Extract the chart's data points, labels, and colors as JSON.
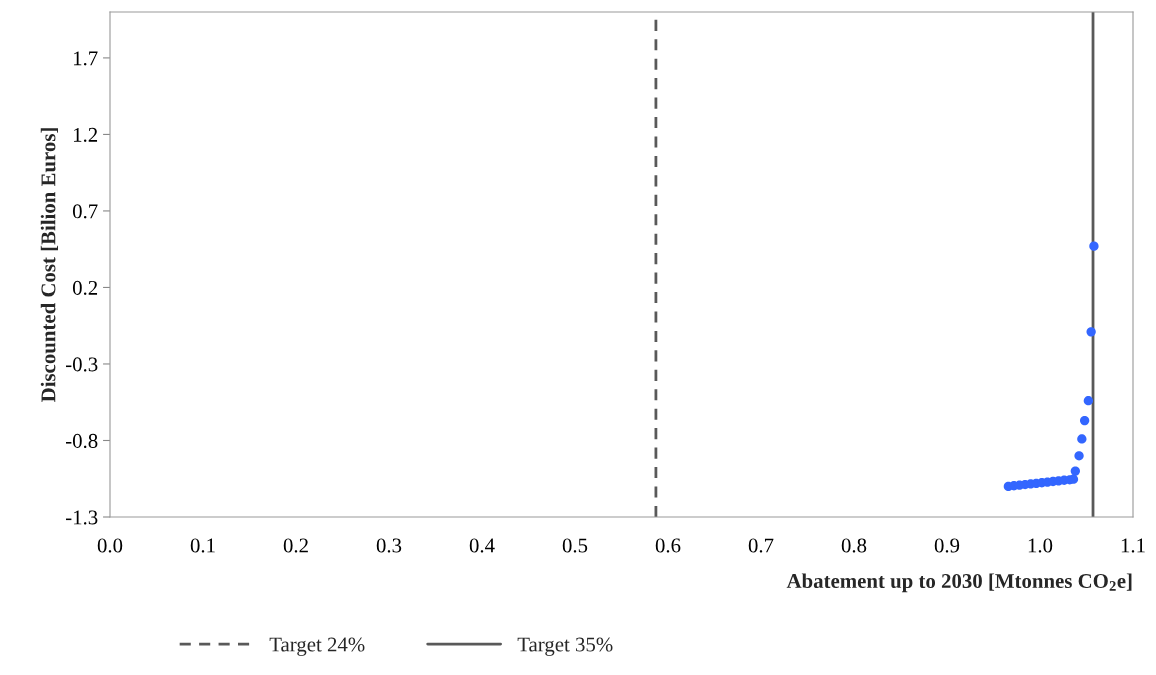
{
  "chart_data": {
    "type": "scatter",
    "xlabel": "Abatement up to 2030 [Mtonnes CO$_{2}$e]",
    "ylabel": "Discounted Cost [Bilion Euros]",
    "series": [
      {
        "color": "#3366ff",
        "x": [
          0.966,
          0.972,
          0.978,
          0.984,
          0.99,
          0.996,
          1.002,
          1.008,
          1.014,
          1.02,
          1.026,
          1.032,
          1.036,
          1.038,
          1.042,
          1.045,
          1.048,
          1.052,
          1.055,
          1.058
        ],
        "values": [
          -1.1,
          -1.096,
          -1.092,
          -1.088,
          -1.084,
          -1.08,
          -1.076,
          -1.072,
          -1.068,
          -1.064,
          -1.06,
          -1.057,
          -1.053,
          -1.0,
          -0.9,
          -0.79,
          -0.67,
          -0.54,
          -0.09,
          0.47
        ]
      }
    ],
    "ref_lines": [
      {
        "axis": "x",
        "value": 0.587,
        "label": "Target 24%",
        "color": "#595959",
        "line_style": "dashed"
      },
      {
        "axis": "x",
        "value": 1.057,
        "label": "Target 35%",
        "color": "#595959",
        "line_style": "solid"
      }
    ],
    "marker": "circle",
    "xlim": [
      0.0,
      1.1
    ],
    "xticks": [
      {
        "value": 0.0,
        "label": "0.0"
      },
      0.1,
      0.2,
      0.3,
      0.4,
      0.5,
      0.6,
      0.7,
      0.8,
      0.9,
      {
        "value": 1.0,
        "label": "1.0"
      },
      1.1
    ],
    "ylim": [
      -1.3,
      2.0
    ],
    "yticks": [
      -1.3,
      -0.8,
      -0.3,
      0.2,
      0.7,
      1.2,
      1.7
    ],
    "grid": false,
    "legend": "bottom"
  }
}
